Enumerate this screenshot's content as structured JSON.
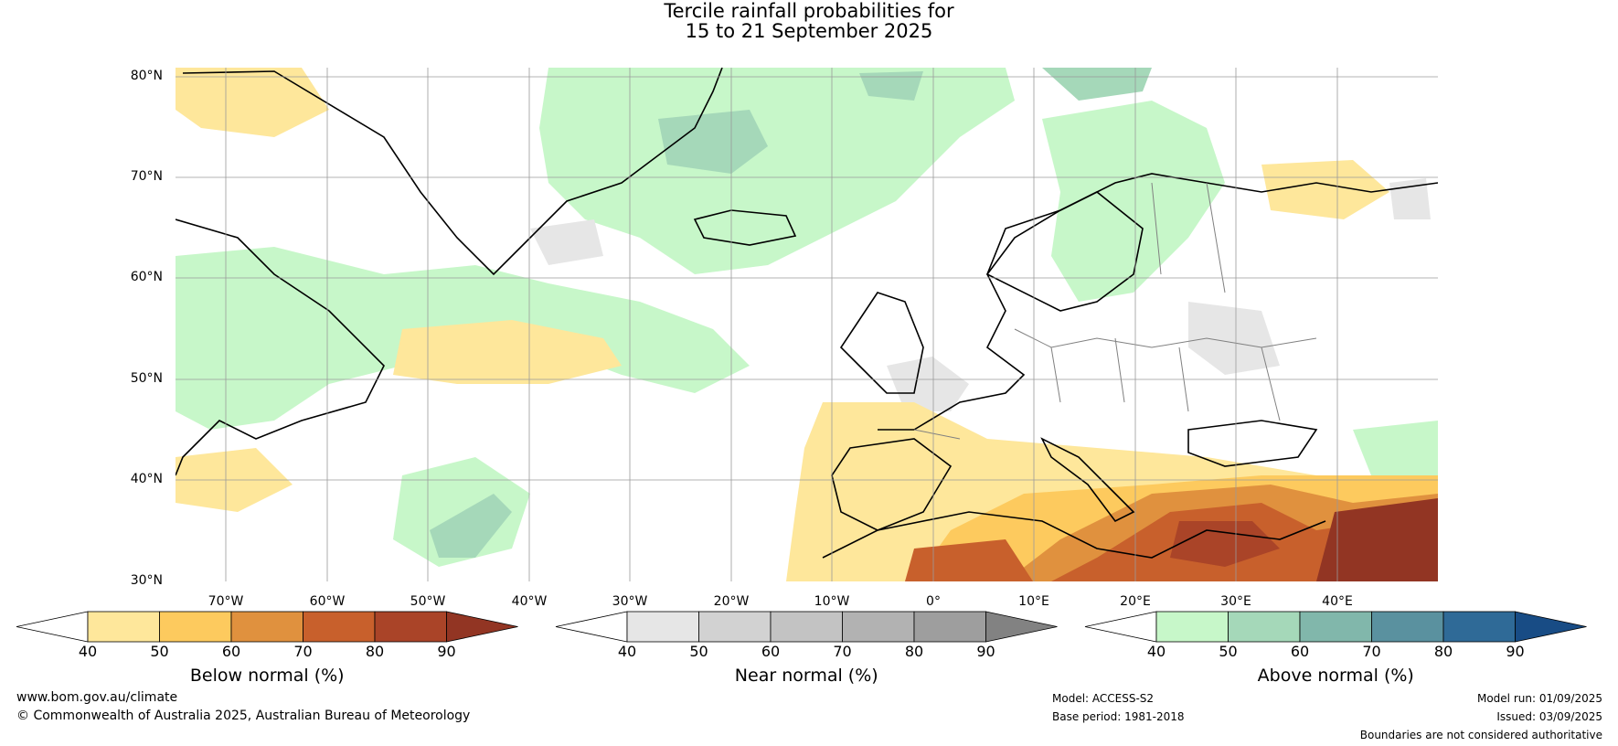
{
  "title": {
    "line1": "Tercile rainfall probabilities for",
    "line2": "15 to 21 September 2025"
  },
  "map": {
    "lat_labels": [
      "80°N",
      "70°N",
      "60°N",
      "50°N",
      "40°N",
      "30°N"
    ],
    "lon_labels": [
      "70°W",
      "60°W",
      "50°W",
      "40°W",
      "30°W",
      "20°W",
      "10°W",
      "0°",
      "10°E",
      "20°E",
      "30°E",
      "40°E"
    ],
    "colors": {
      "below": [
        "#fee79b",
        "#fdca5e",
        "#e0913e",
        "#c8602c",
        "#aa4428",
        "#923523"
      ],
      "near": [
        "#e6e6e6",
        "#d2d2d2",
        "#c3c3c3",
        "#b2b2b2",
        "#9e9e9e",
        "#828282"
      ],
      "above": [
        "#c7f7c9",
        "#a5d8b9",
        "#81b7ab",
        "#5a919f",
        "#2f6a97",
        "#184c85"
      ]
    }
  },
  "colorbars": [
    {
      "key": "below",
      "label": "Below normal (%)",
      "ticks": [
        "40",
        "50",
        "60",
        "70",
        "80",
        "90"
      ]
    },
    {
      "key": "near",
      "label": "Near normal (%)",
      "ticks": [
        "40",
        "50",
        "60",
        "70",
        "80",
        "90"
      ]
    },
    {
      "key": "above",
      "label": "Above normal (%)",
      "ticks": [
        "40",
        "50",
        "60",
        "70",
        "80",
        "90"
      ]
    }
  ],
  "footer": {
    "website": "www.bom.gov.au/climate",
    "copyright": "© Commonwealth of Australia 2025, Australian Bureau of Meteorology",
    "model": "Model: ACCESS-S2",
    "base_period": "Base period: 1981-2018",
    "model_run": "Model run: 01/09/2025",
    "issued": "Issued: 03/09/2025",
    "disclaimer": "Boundaries are not considered authoritative"
  }
}
